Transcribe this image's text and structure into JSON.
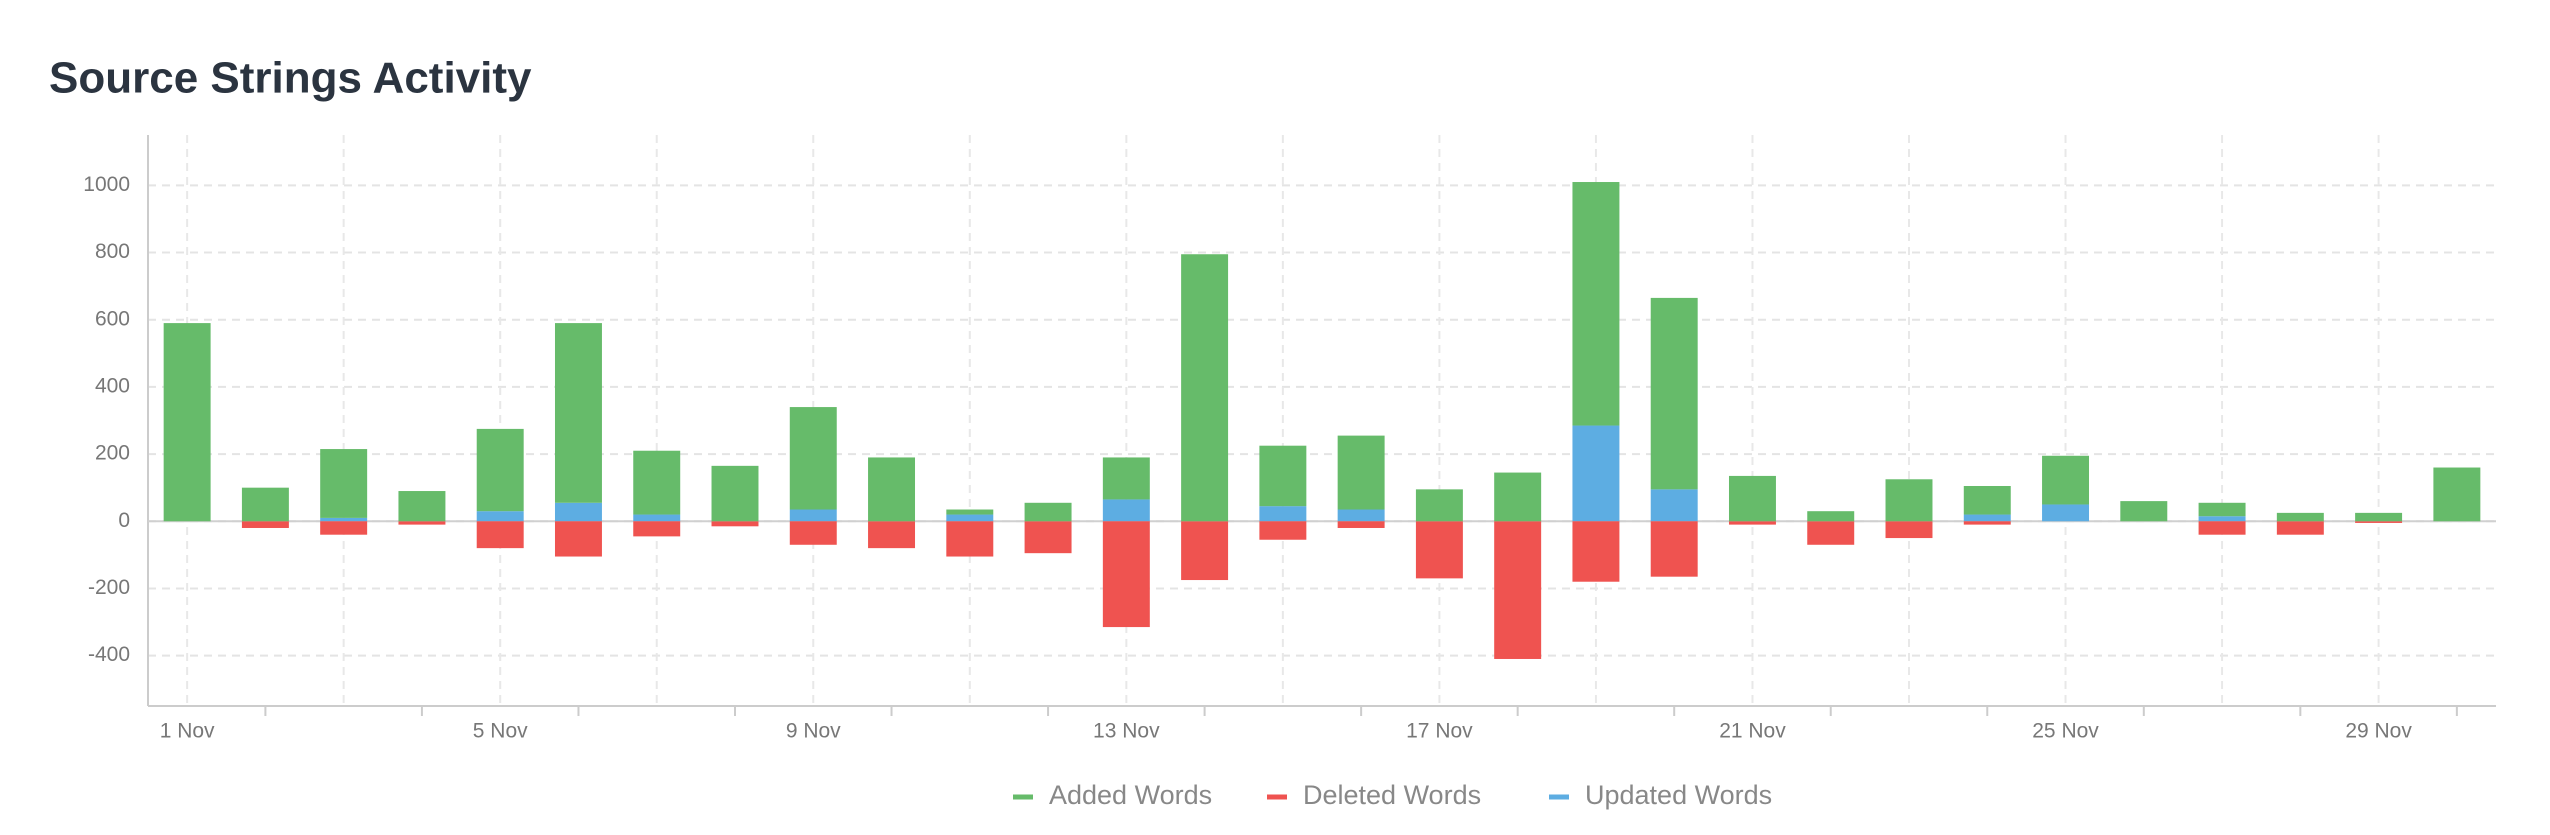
{
  "chart_data": {
    "type": "bar",
    "title": "Source Strings Activity",
    "categories": [
      "1 Nov",
      null,
      null,
      null,
      "5 Nov",
      null,
      null,
      null,
      "9 Nov",
      null,
      null,
      null,
      "13 Nov",
      null,
      null,
      null,
      "17 Nov",
      null,
      null,
      null,
      "21 Nov",
      null,
      null,
      null,
      "25 Nov",
      null,
      null,
      null,
      "29 Nov",
      null
    ],
    "series": [
      {
        "name": "Added Words",
        "color": "#66bb6a",
        "values": [
          590,
          100,
          205,
          90,
          245,
          535,
          190,
          165,
          305,
          190,
          15,
          55,
          125,
          795,
          180,
          220,
          95,
          145,
          725,
          570,
          135,
          30,
          125,
          85,
          145,
          60,
          40,
          25,
          25,
          160
        ]
      },
      {
        "name": "Deleted Words",
        "color": "#ef5350",
        "values": [
          0,
          -20,
          -40,
          -10,
          -80,
          -105,
          -45,
          -15,
          -70,
          -80,
          -105,
          -95,
          -315,
          -175,
          -55,
          -20,
          -170,
          -410,
          -180,
          -165,
          -10,
          -70,
          -50,
          -10,
          0,
          0,
          -40,
          -40,
          -5,
          0
        ]
      },
      {
        "name": "Updated Words",
        "color": "#5dade2",
        "values": [
          0,
          0,
          10,
          0,
          30,
          55,
          20,
          0,
          35,
          0,
          20,
          0,
          65,
          0,
          45,
          35,
          0,
          0,
          285,
          95,
          0,
          0,
          0,
          20,
          50,
          0,
          15,
          0,
          0,
          0
        ]
      }
    ],
    "ylim": [
      -550,
      1150
    ],
    "yticks": [
      -400,
      -200,
      0,
      200,
      400,
      600,
      800,
      1000
    ],
    "grid": true,
    "legend": "bottom"
  }
}
